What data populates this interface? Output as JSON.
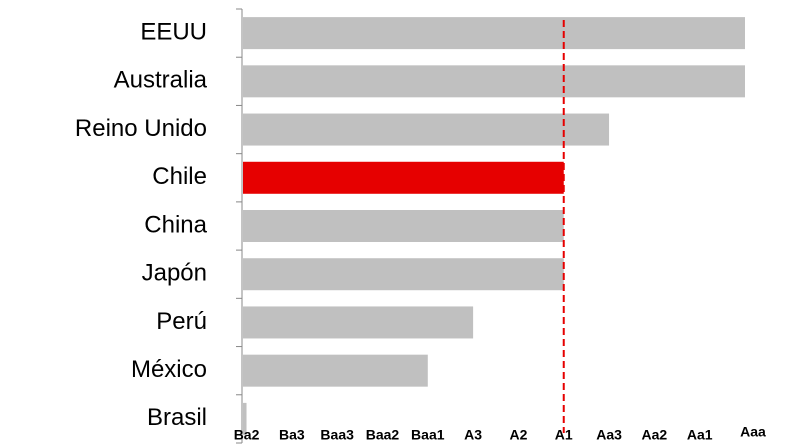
{
  "chart_data": {
    "type": "bar",
    "orientation": "horizontal",
    "categories": [
      "EEUU",
      "Australia",
      "Reino Unido",
      "Chile",
      "China",
      "Japón",
      "Perú",
      "México",
      "Brasil"
    ],
    "values": [
      11,
      11,
      8,
      7,
      7,
      7,
      5,
      4,
      0
    ],
    "colors": [
      "#c0c0c0",
      "#c0c0c0",
      "#c0c0c0",
      "#e60000",
      "#c0c0c0",
      "#c0c0c0",
      "#c0c0c0",
      "#c0c0c0",
      "#c0c0c0"
    ],
    "xlim": [
      -0.1,
      11
    ],
    "xticks": [
      {
        "value": 0,
        "label": "Ba2"
      },
      {
        "value": 1,
        "label": "Ba3"
      },
      {
        "value": 2,
        "label": "Baa3"
      },
      {
        "value": 3,
        "label": "Baa2"
      },
      {
        "value": 4,
        "label": "Baa1"
      },
      {
        "value": 5,
        "label": "A3"
      },
      {
        "value": 6,
        "label": "A2"
      },
      {
        "value": 7,
        "label": "A1"
      },
      {
        "value": 8,
        "label": "Aa3"
      },
      {
        "value": 9,
        "label": "Aa2"
      },
      {
        "value": 10,
        "label": "Aa1"
      },
      {
        "value": 11,
        "label": "Aaa"
      }
    ],
    "reference_line": {
      "value": 7,
      "color": "#e60000",
      "style": "dashed"
    }
  }
}
